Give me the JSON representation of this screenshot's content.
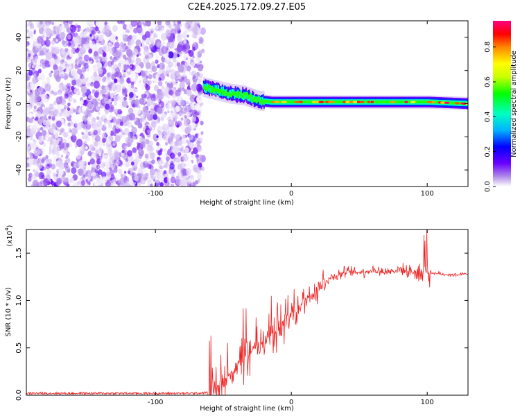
{
  "chart_data": [
    {
      "type": "heatmap",
      "title": "C2E4.2025.172.09.27.E05",
      "xlabel": "Height of straight line (km)",
      "ylabel": "Frequency (Hz)",
      "xlim": [
        -195,
        130
      ],
      "ylim": [
        -50,
        50
      ],
      "xticks": [
        "-100",
        "0",
        "100"
      ],
      "yticks": [
        "-40",
        "-20",
        "0",
        "20",
        "40"
      ],
      "colorbar": {
        "label": "Normalized spectral amplitude",
        "range": [
          0,
          0.95
        ],
        "ticks": [
          "0.0",
          "0.2",
          "0.4",
          "0.6",
          "0.8"
        ]
      },
      "regions": [
        {
          "x": [
            -195,
            -65
          ],
          "description_values": {
            "amplitude": "low (0.0-0.15)",
            "frequency_span": [
              -50,
              50
            ]
          }
        },
        {
          "x": [
            -65,
            -20
          ],
          "center_freq": [
            10,
            5,
            3,
            0
          ],
          "amplitude": "0.2-0.5"
        },
        {
          "x": [
            -20,
            130
          ],
          "center_freq": 1,
          "bandwidth": [
            -3,
            3
          ],
          "peak_amplitude": 0.9
        }
      ],
      "ridge": [
        {
          "x": -65,
          "f": 10
        },
        {
          "x": -55,
          "f": 8
        },
        {
          "x": -45,
          "f": 6
        },
        {
          "x": -35,
          "f": 5
        },
        {
          "x": -25,
          "f": 2
        },
        {
          "x": -15,
          "f": 1
        },
        {
          "x": 0,
          "f": 1
        },
        {
          "x": 50,
          "f": 1
        },
        {
          "x": 100,
          "f": 1
        },
        {
          "x": 130,
          "f": 0
        }
      ]
    },
    {
      "type": "line",
      "xlabel": "Height of straight line (km)",
      "ylabel": "SNR (10 * v/v)",
      "y_multiplier": "(x10",
      "y_multiplier_exp": "4",
      "xlim": [
        -195,
        130
      ],
      "ylim": [
        0,
        1.75
      ],
      "xticks": [
        "-100",
        "0",
        "100"
      ],
      "yticks": [
        "0.0",
        "0.5",
        "1.0",
        "1.5"
      ],
      "series": [
        {
          "color": "#ee2222",
          "x": [
            -195,
            -150,
            -100,
            -70,
            -60,
            -50,
            -40,
            -30,
            -20,
            -10,
            0,
            10,
            20,
            30,
            40,
            50,
            60,
            70,
            80,
            90,
            95,
            100,
            110,
            120,
            130
          ],
          "y": [
            0.02,
            0.02,
            0.02,
            0.02,
            0.03,
            0.15,
            0.3,
            0.45,
            0.6,
            0.7,
            0.85,
            1.0,
            1.15,
            1.25,
            1.3,
            1.3,
            1.32,
            1.3,
            1.33,
            1.3,
            1.3,
            1.3,
            1.28,
            1.27,
            1.28
          ]
        }
      ]
    }
  ]
}
